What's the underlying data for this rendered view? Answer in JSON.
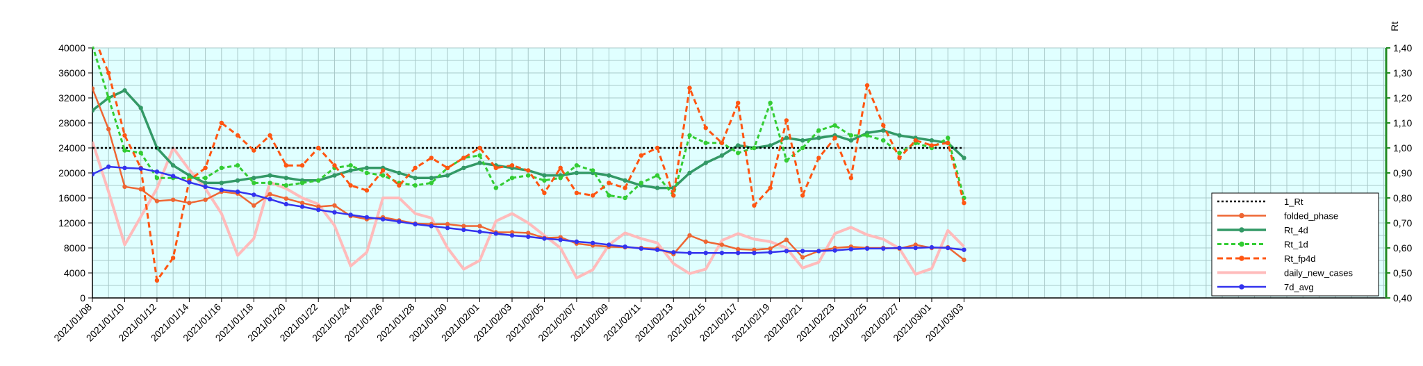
{
  "chart_data": {
    "type": "line",
    "title": "",
    "xlabel": "",
    "ylabel_left": "",
    "ylabel_right": "Rt",
    "ylim_left": [
      0,
      40000
    ],
    "ylim_right": [
      0.4,
      1.4
    ],
    "left_ticks": [
      "0",
      "4000",
      "8000",
      "12000",
      "16000",
      "20000",
      "24000",
      "28000",
      "32000",
      "36000",
      "40000"
    ],
    "right_ticks": [
      "0,40",
      "0,50",
      "0,60",
      "0,70",
      "0,80",
      "0,90",
      "1,00",
      "1,10",
      "1,20",
      "1,30",
      "1,40"
    ],
    "grid": true,
    "legend_position": "right",
    "x": [
      "2021/01/08",
      "2021/01/09",
      "2021/01/10",
      "2021/01/11",
      "2021/01/12",
      "2021/01/13",
      "2021/01/14",
      "2021/01/15",
      "2021/01/16",
      "2021/01/17",
      "2021/01/18",
      "2021/01/19",
      "2021/01/20",
      "2021/01/21",
      "2021/01/22",
      "2021/01/23",
      "2021/01/24",
      "2021/01/25",
      "2021/01/26",
      "2021/01/27",
      "2021/01/28",
      "2021/01/29",
      "2021/01/30",
      "2021/01/31",
      "2021/02/01",
      "2021/02/02",
      "2021/02/03",
      "2021/02/04",
      "2021/02/05",
      "2021/02/06",
      "2021/02/07",
      "2021/02/08",
      "2021/02/09",
      "2021/02/10",
      "2021/02/11",
      "2021/02/12",
      "2021/02/13",
      "2021/02/14",
      "2021/02/15",
      "2021/02/16",
      "2021/02/17",
      "2021/02/18",
      "2021/02/19",
      "2021/02/20",
      "2021/02/21",
      "2021/02/22",
      "2021/02/23",
      "2021/02/24",
      "2021/02/25",
      "2021/02/26",
      "2021/02/27",
      "2021/02/28",
      "2021/03/01",
      "2021/03/02",
      "2021/03/03"
    ],
    "x_tick_labels": [
      "2021/01/08",
      "2021/01/10",
      "2021/01/12",
      "2021/01/14",
      "2021/01/16",
      "2021/01/18",
      "2021/01/20",
      "2021/01/22",
      "2021/01/24",
      "2021/01/26",
      "2021/01/28",
      "2021/01/30",
      "2021/02/01",
      "2021/02/03",
      "2021/02/05",
      "2021/02/07",
      "2021/02/09",
      "2021/02/11",
      "2021/02/13",
      "2021/02/15",
      "2021/02/17",
      "2021/02/19",
      "2021/02/21",
      "2021/02/23",
      "2021/02/25",
      "2021/02/27",
      "2021/03/01",
      "2021/03/03"
    ],
    "series": [
      {
        "name": "1_Rt",
        "axis": "right",
        "color": "#000000",
        "dash": "3,3",
        "width": 2.5,
        "marker": "none",
        "values": [
          1.0,
          1.0,
          1.0,
          1.0,
          1.0,
          1.0,
          1.0,
          1.0,
          1.0,
          1.0,
          1.0,
          1.0,
          1.0,
          1.0,
          1.0,
          1.0,
          1.0,
          1.0,
          1.0,
          1.0,
          1.0,
          1.0,
          1.0,
          1.0,
          1.0,
          1.0,
          1.0,
          1.0,
          1.0,
          1.0,
          1.0,
          1.0,
          1.0,
          1.0,
          1.0,
          1.0,
          1.0,
          1.0,
          1.0,
          1.0,
          1.0,
          1.0,
          1.0,
          1.0,
          1.0,
          1.0,
          1.0,
          1.0,
          1.0,
          1.0,
          1.0,
          1.0,
          1.0,
          1.0,
          1.0
        ]
      },
      {
        "name": "folded_phase",
        "axis": "left",
        "color": "#ee6633",
        "dash": "",
        "width": 2.5,
        "marker": "circle",
        "values": [
          33500,
          27000,
          17800,
          17400,
          15500,
          15700,
          15200,
          15700,
          17000,
          16700,
          14800,
          16600,
          15900,
          15200,
          14600,
          14800,
          13100,
          12600,
          12900,
          12400,
          11900,
          11800,
          11800,
          11500,
          11500,
          10500,
          10500,
          10400,
          9600,
          9700,
          8700,
          8400,
          8200,
          8100,
          8000,
          7900,
          7000,
          10000,
          9000,
          8500,
          7800,
          7700,
          7900,
          9300,
          6500,
          7500,
          8000,
          8200,
          8000,
          8000,
          7900,
          8500,
          8000,
          8100,
          6100
        ]
      },
      {
        "name": "Rt_4d",
        "axis": "right",
        "color": "#339966",
        "dash": "",
        "width": 3.5,
        "marker": "circle",
        "values": [
          1.15,
          1.2,
          1.23,
          1.16,
          1.0,
          0.93,
          0.89,
          0.86,
          0.86,
          0.87,
          0.88,
          0.89,
          0.88,
          0.87,
          0.87,
          0.89,
          0.91,
          0.92,
          0.92,
          0.9,
          0.88,
          0.88,
          0.89,
          0.92,
          0.94,
          0.93,
          0.92,
          0.91,
          0.89,
          0.89,
          0.9,
          0.9,
          0.89,
          0.87,
          0.85,
          0.84,
          0.84,
          0.9,
          0.94,
          0.97,
          1.01,
          1.0,
          1.01,
          1.04,
          1.03,
          1.04,
          1.05,
          1.03,
          1.06,
          1.07,
          1.05,
          1.04,
          1.03,
          1.02,
          0.96
        ]
      },
      {
        "name": "Rt_1d",
        "axis": "right",
        "color": "#33cc33",
        "dash": "6,4",
        "width": 3,
        "marker": "circle",
        "values": [
          1.41,
          1.2,
          0.99,
          0.98,
          0.88,
          0.88,
          0.88,
          0.88,
          0.92,
          0.93,
          0.86,
          0.86,
          0.85,
          0.86,
          0.87,
          0.92,
          0.93,
          0.9,
          0.89,
          0.86,
          0.85,
          0.86,
          0.92,
          0.96,
          0.97,
          0.84,
          0.88,
          0.89,
          0.87,
          0.88,
          0.93,
          0.91,
          0.81,
          0.8,
          0.86,
          0.89,
          0.81,
          1.05,
          1.02,
          1.02,
          0.98,
          1.0,
          1.18,
          0.95,
          1.0,
          1.07,
          1.09,
          1.05,
          1.05,
          1.03,
          0.98,
          1.02,
          1.0,
          1.04,
          0.8
        ]
      },
      {
        "name": "Rt_fp4d",
        "axis": "right",
        "color": "#ff5511",
        "dash": "8,5",
        "width": 3,
        "marker": "circle",
        "values": [
          1.46,
          1.3,
          1.05,
          0.92,
          0.47,
          0.56,
          0.87,
          0.92,
          1.1,
          1.05,
          0.99,
          1.05,
          0.93,
          0.93,
          1.0,
          0.93,
          0.85,
          0.83,
          0.91,
          0.85,
          0.92,
          0.96,
          0.92,
          0.96,
          1.0,
          0.92,
          0.93,
          0.91,
          0.82,
          0.92,
          0.82,
          0.81,
          0.86,
          0.84,
          0.97,
          1.0,
          0.81,
          1.24,
          1.08,
          1.02,
          1.18,
          0.77,
          0.84,
          1.11,
          0.81,
          0.96,
          1.04,
          0.88,
          1.25,
          1.09,
          0.96,
          1.03,
          1.01,
          1.02,
          0.78
        ]
      },
      {
        "name": "daily_new_cases",
        "axis": "left",
        "color": "#ffbbbb",
        "dash": "",
        "width": 4,
        "marker": "none",
        "values": [
          25000,
          17000,
          8500,
          13000,
          17500,
          24000,
          20500,
          17500,
          13500,
          6800,
          9500,
          18500,
          17500,
          16000,
          15000,
          11600,
          5100,
          7300,
          16000,
          16000,
          13500,
          12800,
          8000,
          4600,
          6000,
          12300,
          13500,
          12000,
          10000,
          8000,
          3200,
          4500,
          8500,
          10400,
          9500,
          8800,
          5500,
          3900,
          4600,
          9200,
          10300,
          9400,
          9000,
          8000,
          4800,
          5700,
          10300,
          11300,
          10100,
          9400,
          7900,
          3800,
          4700,
          10800,
          8200
        ]
      },
      {
        "name": "7d_avg",
        "axis": "left",
        "color": "#3333ee",
        "dash": "",
        "width": 2.5,
        "marker": "circle",
        "values": [
          19800,
          21000,
          20800,
          20700,
          20200,
          19500,
          18500,
          17800,
          17300,
          17000,
          16500,
          15800,
          15000,
          14600,
          14100,
          13700,
          13300,
          12900,
          12600,
          12200,
          11800,
          11500,
          11200,
          10900,
          10600,
          10300,
          10000,
          9800,
          9500,
          9300,
          9000,
          8800,
          8500,
          8200,
          7900,
          7700,
          7300,
          7200,
          7200,
          7200,
          7200,
          7200,
          7300,
          7500,
          7500,
          7500,
          7600,
          7800,
          7900,
          7900,
          8000,
          8000,
          8100,
          8000,
          7700
        ]
      }
    ]
  }
}
